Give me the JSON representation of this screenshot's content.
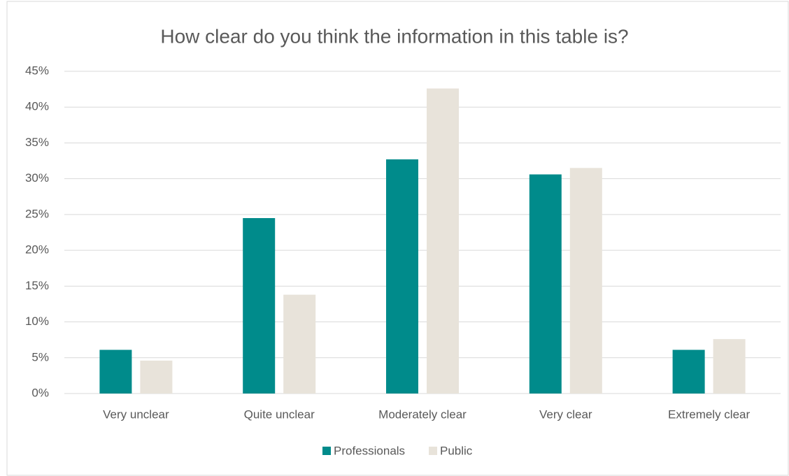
{
  "chart_data": {
    "type": "bar",
    "title": "How clear do you think the information in this table is?",
    "categories": [
      "Very unclear",
      "Quite unclear",
      "Moderately clear",
      "Very clear",
      "Extremely clear"
    ],
    "series": [
      {
        "name": "Professionals",
        "color": "#008b8b",
        "values": [
          6.1,
          24.5,
          32.7,
          30.6,
          6.1
        ]
      },
      {
        "name": "Public",
        "color": "#e8e3da",
        "values": [
          4.6,
          13.8,
          42.6,
          31.5,
          7.6
        ]
      }
    ],
    "ylim": [
      0,
      45
    ],
    "yticks": [
      {
        "value": 0,
        "label": "0%"
      },
      {
        "value": 5,
        "label": "5%"
      },
      {
        "value": 10,
        "label": "10%"
      },
      {
        "value": 15,
        "label": "15%"
      },
      {
        "value": 20,
        "label": "20%"
      },
      {
        "value": 25,
        "label": "25%"
      },
      {
        "value": 30,
        "label": "30%"
      },
      {
        "value": 35,
        "label": "35%"
      },
      {
        "value": 40,
        "label": "40%"
      },
      {
        "value": 45,
        "label": "45%"
      }
    ],
    "grid": true,
    "legend": "bottom"
  }
}
